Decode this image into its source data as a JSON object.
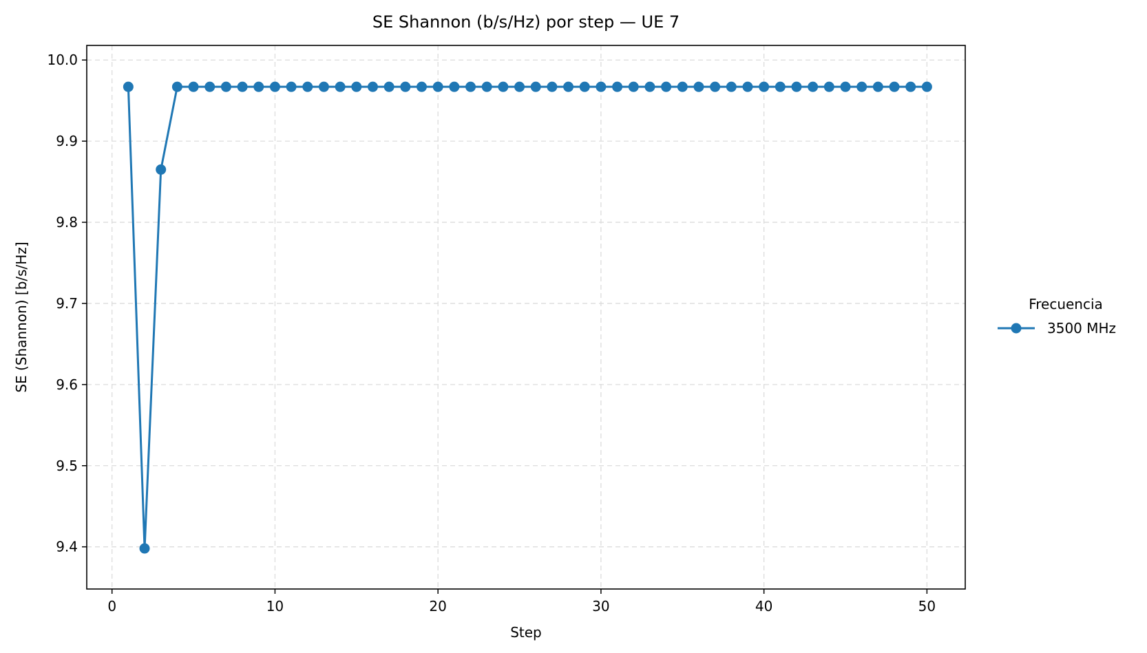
{
  "chart_data": {
    "type": "line",
    "title": "SE Shannon (b/s/Hz) por step — UE 7",
    "xlabel": "Step",
    "ylabel": "SE (Shannon) [b/s/Hz]",
    "xlim": [
      -1.55,
      52.35
    ],
    "ylim": [
      9.348,
      10.018
    ],
    "xticks": [
      0,
      10,
      20,
      30,
      40,
      50
    ],
    "yticks": [
      9.4,
      9.5,
      9.6,
      9.7,
      9.8,
      9.9,
      10.0
    ],
    "xtick_labels": [
      "0",
      "10",
      "20",
      "30",
      "40",
      "50"
    ],
    "ytick_labels": [
      "9.4",
      "9.5",
      "9.6",
      "9.7",
      "9.8",
      "9.9",
      "10.0"
    ],
    "grid": true,
    "legend": {
      "title": "Frecuencia",
      "placement": "right-outside"
    },
    "series": [
      {
        "name": "3500 MHz",
        "color": "#1f77b4",
        "marker": "circle",
        "x": [
          1,
          2,
          3,
          4,
          5,
          6,
          7,
          8,
          9,
          10,
          11,
          12,
          13,
          14,
          15,
          16,
          17,
          18,
          19,
          20,
          21,
          22,
          23,
          24,
          25,
          26,
          27,
          28,
          29,
          30,
          31,
          32,
          33,
          34,
          35,
          36,
          37,
          38,
          39,
          40,
          41,
          42,
          43,
          44,
          45,
          46,
          47,
          48,
          49,
          50
        ],
        "values": [
          9.967,
          9.398,
          9.865,
          9.967,
          9.967,
          9.967,
          9.967,
          9.967,
          9.967,
          9.967,
          9.967,
          9.967,
          9.967,
          9.967,
          9.967,
          9.967,
          9.967,
          9.967,
          9.967,
          9.967,
          9.967,
          9.967,
          9.967,
          9.967,
          9.967,
          9.967,
          9.967,
          9.967,
          9.967,
          9.967,
          9.967,
          9.967,
          9.967,
          9.967,
          9.967,
          9.967,
          9.967,
          9.967,
          9.967,
          9.967,
          9.967,
          9.967,
          9.967,
          9.967,
          9.967,
          9.967,
          9.967,
          9.967,
          9.967,
          9.967
        ]
      }
    ]
  }
}
